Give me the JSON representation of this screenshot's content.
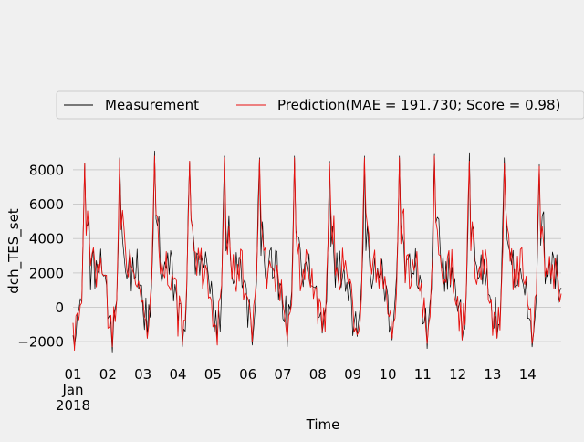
{
  "chart_data": {
    "type": "line",
    "xlabel": "Time",
    "ylabel": "dch_TES_set",
    "x_range": [
      "2018-01-01",
      "2018-01-14T23:00"
    ],
    "ylim": [
      -3000,
      9800
    ],
    "y_ticks": [
      -2000,
      0,
      2000,
      4000,
      6000,
      8000
    ],
    "x_tick_labels": [
      {
        "date": "2018-01-01",
        "label": "01",
        "sub": [
          "Jan",
          "2018"
        ]
      },
      {
        "date": "2018-01-02",
        "label": "02"
      },
      {
        "date": "2018-01-03",
        "label": "03"
      },
      {
        "date": "2018-01-04",
        "label": "04"
      },
      {
        "date": "2018-01-05",
        "label": "05"
      },
      {
        "date": "2018-01-06",
        "label": "06"
      },
      {
        "date": "2018-01-07",
        "label": "07"
      },
      {
        "date": "2018-01-08",
        "label": "08"
      },
      {
        "date": "2018-01-09",
        "label": "09"
      },
      {
        "date": "2018-01-10",
        "label": "10"
      },
      {
        "date": "2018-01-11",
        "label": "11"
      },
      {
        "date": "2018-01-12",
        "label": "12"
      },
      {
        "date": "2018-01-13",
        "label": "13"
      },
      {
        "date": "2018-01-14",
        "label": "14"
      }
    ],
    "grid": true,
    "legend_position": "top",
    "series": [
      {
        "name": "Measurement",
        "color": "#000000",
        "daily_peaks": [
          {
            "date": "2018-01-01T08:00",
            "y": 8400
          },
          {
            "date": "2018-01-02T08:00",
            "y": 8700
          },
          {
            "date": "2018-01-03T08:00",
            "y": 9100
          },
          {
            "date": "2018-01-04T08:00",
            "y": 8500
          },
          {
            "date": "2018-01-05T08:00",
            "y": 8800
          },
          {
            "date": "2018-01-06T08:00",
            "y": 8700
          },
          {
            "date": "2018-01-07T08:00",
            "y": 8800
          },
          {
            "date": "2018-01-08T08:00",
            "y": 8500
          },
          {
            "date": "2018-01-09T08:00",
            "y": 8800
          },
          {
            "date": "2018-01-10T08:00",
            "y": 8800
          },
          {
            "date": "2018-01-11T08:00",
            "y": 8900
          },
          {
            "date": "2018-01-12T08:00",
            "y": 9000
          },
          {
            "date": "2018-01-13T08:00",
            "y": 8700
          },
          {
            "date": "2018-01-14T08:00",
            "y": 8300
          }
        ],
        "daily_minima": [
          {
            "date": "2018-01-01T01:00",
            "y": -2300
          },
          {
            "date": "2018-01-02T03:00",
            "y": -2600
          },
          {
            "date": "2018-01-03T03:00",
            "y": -1800
          },
          {
            "date": "2018-01-04T03:00",
            "y": -2300
          },
          {
            "date": "2018-01-05T03:00",
            "y": -1800
          },
          {
            "date": "2018-01-06T03:00",
            "y": -2200
          },
          {
            "date": "2018-01-07T03:00",
            "y": -2300
          },
          {
            "date": "2018-01-08T03:00",
            "y": -1500
          },
          {
            "date": "2018-01-09T03:00",
            "y": -1700
          },
          {
            "date": "2018-01-10T03:00",
            "y": -1900
          },
          {
            "date": "2018-01-11T03:00",
            "y": -2400
          },
          {
            "date": "2018-01-12T03:00",
            "y": -1900
          },
          {
            "date": "2018-01-13T03:00",
            "y": -1800
          },
          {
            "date": "2018-01-14T03:00",
            "y": -2300
          }
        ]
      },
      {
        "name": "Prediction(MAE = 191.730; Score = 0.98)",
        "color": "#e8110f",
        "daily_peaks": [
          {
            "date": "2018-01-01T08:00",
            "y": 8400
          },
          {
            "date": "2018-01-02T08:00",
            "y": 8600
          },
          {
            "date": "2018-01-03T08:00",
            "y": 8800
          },
          {
            "date": "2018-01-04T08:00",
            "y": 8500
          },
          {
            "date": "2018-01-05T08:00",
            "y": 8700
          },
          {
            "date": "2018-01-06T08:00",
            "y": 8600
          },
          {
            "date": "2018-01-07T08:00",
            "y": 8700
          },
          {
            "date": "2018-01-08T08:00",
            "y": 8400
          },
          {
            "date": "2018-01-09T08:00",
            "y": 8700
          },
          {
            "date": "2018-01-10T08:00",
            "y": 8700
          },
          {
            "date": "2018-01-11T08:00",
            "y": 8800
          },
          {
            "date": "2018-01-12T08:00",
            "y": 8500
          },
          {
            "date": "2018-01-13T08:00",
            "y": 8400
          },
          {
            "date": "2018-01-14T08:00",
            "y": 8200
          }
        ],
        "daily_minima": [
          {
            "date": "2018-01-01T01:00",
            "y": -2500
          },
          {
            "date": "2018-01-02T03:00",
            "y": -2300
          },
          {
            "date": "2018-01-03T03:00",
            "y": -1800
          },
          {
            "date": "2018-01-04T03:00",
            "y": -2200
          },
          {
            "date": "2018-01-05T03:00",
            "y": -2200
          },
          {
            "date": "2018-01-06T03:00",
            "y": -2000
          },
          {
            "date": "2018-01-07T03:00",
            "y": -1900
          },
          {
            "date": "2018-01-08T03:00",
            "y": -1400
          },
          {
            "date": "2018-01-09T03:00",
            "y": -1600
          },
          {
            "date": "2018-01-10T03:00",
            "y": -1800
          },
          {
            "date": "2018-01-11T03:00",
            "y": -2100
          },
          {
            "date": "2018-01-12T03:00",
            "y": -1900
          },
          {
            "date": "2018-01-13T03:00",
            "y": -1800
          },
          {
            "date": "2018-01-14T03:00",
            "y": -2100
          }
        ]
      }
    ]
  }
}
